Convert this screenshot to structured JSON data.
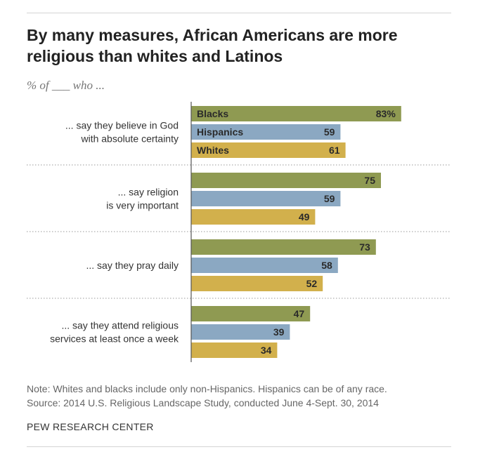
{
  "title": "By many measures, African Americans are more religious than whites and Latinos",
  "subtitle": "% of ___ who ...",
  "note": "Note: Whites and blacks include only non-Hispanics. Hispanics can be of any race.",
  "source": "Source: 2014 U.S. Religious Landscape Study, conducted June 4-Sept. 30, 2014",
  "org": "PEW RESEARCH CENTER",
  "colors": {
    "blacks": "#8f9a52",
    "hispanics": "#8ba8c2",
    "whites": "#d2b04c"
  },
  "chart_data": {
    "type": "bar",
    "orientation": "horizontal",
    "categories": [
      [
        "... say they believe in God",
        "with absolute certainty"
      ],
      [
        "... say religion",
        "is very important"
      ],
      [
        "... say they pray daily"
      ],
      [
        "... say they attend religious",
        "services at least once a week"
      ]
    ],
    "series": [
      {
        "name": "Blacks",
        "values": [
          83,
          75,
          73,
          47
        ]
      },
      {
        "name": "Hispanics",
        "values": [
          59,
          59,
          58,
          39
        ]
      },
      {
        "name": "Whites",
        "values": [
          61,
          49,
          52,
          34
        ]
      }
    ],
    "value_labels": [
      [
        "83%",
        "75",
        "73",
        "47"
      ],
      [
        "59",
        "59",
        "58",
        "39"
      ],
      [
        "61",
        "49",
        "52",
        "34"
      ]
    ],
    "xlim": [
      0,
      100
    ],
    "grid": false,
    "legend": "inline in first group of bars"
  }
}
